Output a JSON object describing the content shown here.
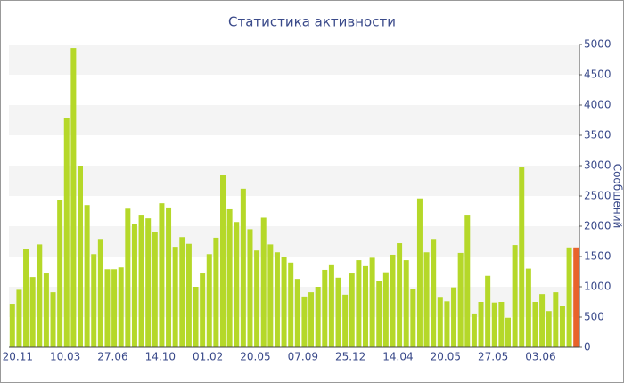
{
  "chart_data": {
    "type": "bar",
    "title": "Статистика активности",
    "y_label": "Сообщений",
    "categories": [
      "20.11",
      null,
      null,
      null,
      null,
      null,
      null,
      "10.03",
      null,
      null,
      null,
      null,
      null,
      null,
      "27.06",
      null,
      null,
      null,
      null,
      null,
      null,
      "14.10",
      null,
      null,
      null,
      null,
      null,
      null,
      "01.02",
      null,
      null,
      null,
      null,
      null,
      null,
      "20.05",
      null,
      null,
      null,
      null,
      null,
      null,
      "07.09",
      null,
      null,
      null,
      null,
      null,
      null,
      "25.12",
      null,
      null,
      null,
      null,
      null,
      null,
      "14.04",
      null,
      null,
      null,
      null,
      null,
      null,
      "20.05",
      null,
      null,
      null,
      null,
      null,
      null,
      "27.05",
      null,
      null,
      null,
      null,
      null,
      null,
      "03.06",
      null,
      null,
      null,
      null,
      null,
      null
    ],
    "values": [
      720,
      950,
      1630,
      1160,
      1700,
      1220,
      910,
      2440,
      3780,
      4940,
      3000,
      2350,
      1540,
      1790,
      1290,
      1290,
      1320,
      2290,
      2040,
      2190,
      2130,
      1900,
      2380,
      2310,
      1660,
      1820,
      1710,
      1000,
      1220,
      1540,
      1810,
      2850,
      2280,
      2070,
      2620,
      1950,
      1600,
      2140,
      1700,
      1570,
      1500,
      1400,
      1130,
      840,
      910,
      1000,
      1280,
      1370,
      1150,
      870,
      1220,
      1440,
      1340,
      1480,
      1090,
      1240,
      1530,
      1720,
      1440,
      970,
      2460,
      1570,
      1790,
      820,
      760,
      990,
      1560,
      2190,
      560,
      750,
      1180,
      740,
      750,
      490,
      1690,
      2970,
      1300,
      750,
      880,
      600,
      910,
      680,
      1650,
      1650
    ],
    "color": "#b5d829",
    "current_color": "#e8632b",
    "ylim": [
      0,
      5000
    ],
    "yticks": [
      0,
      500,
      1000,
      1500,
      2000,
      2500,
      3000,
      3500,
      4000,
      4500,
      5000
    ],
    "banded_grid": true
  }
}
